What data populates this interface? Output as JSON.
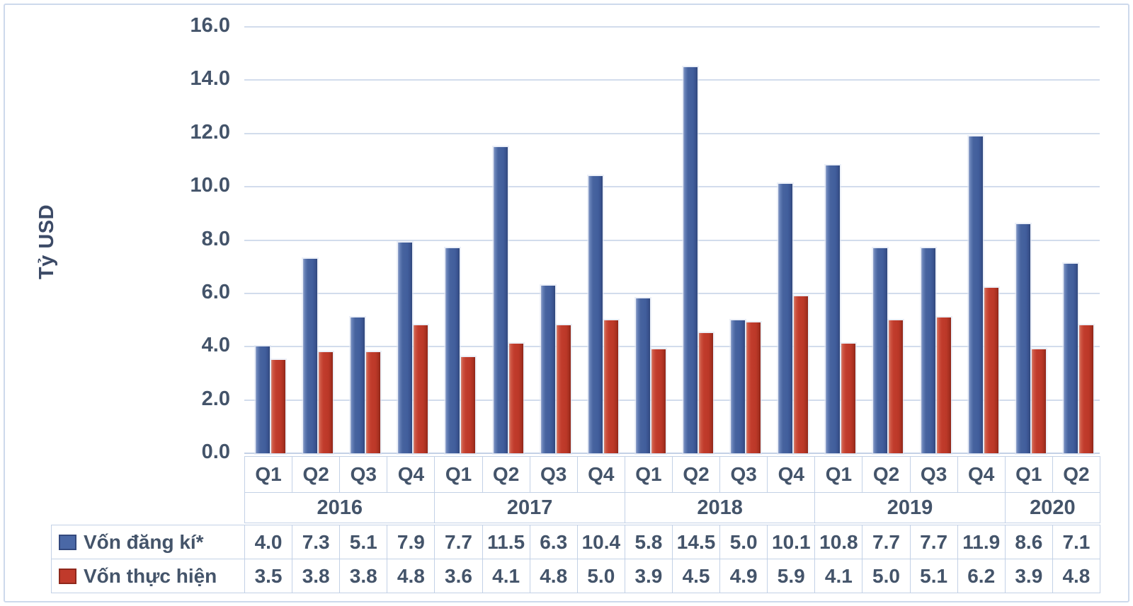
{
  "chart_data": {
    "type": "bar",
    "title": "",
    "ylabel": "Tỷ USD",
    "xlabel": "",
    "ylim": [
      0,
      16
    ],
    "ytick_step": 2,
    "ytick_labels": [
      "16.0",
      "14.0",
      "12.0",
      "10.0",
      "8.0",
      "6.0",
      "4.0",
      "2.0",
      "0.0"
    ],
    "grid": true,
    "legend_position": "data-table-left",
    "quarter_labels": [
      "Q1",
      "Q2",
      "Q3",
      "Q4",
      "Q1",
      "Q2",
      "Q3",
      "Q4",
      "Q1",
      "Q2",
      "Q3",
      "Q4",
      "Q1",
      "Q2",
      "Q3",
      "Q4",
      "Q1",
      "Q2"
    ],
    "year_groups": [
      {
        "label": "2016",
        "span": 4
      },
      {
        "label": "2017",
        "span": 4
      },
      {
        "label": "2018",
        "span": 4
      },
      {
        "label": "2019",
        "span": 4
      },
      {
        "label": "2020",
        "span": 2
      }
    ],
    "series": [
      {
        "name": "Vốn đăng kí*",
        "color": "#47639f",
        "values": [
          4.0,
          7.3,
          5.1,
          7.9,
          7.7,
          11.5,
          6.3,
          10.4,
          5.8,
          14.5,
          5.0,
          10.1,
          10.8,
          7.7,
          7.7,
          11.9,
          8.6,
          7.1
        ],
        "values_display": [
          "4.0",
          "7.3",
          "5.1",
          "7.9",
          "7.7",
          "11.5",
          "6.3",
          "10.4",
          "5.8",
          "14.5",
          "5.0",
          "10.1",
          "10.8",
          "7.7",
          "7.7",
          "11.9",
          "8.6",
          "7.1"
        ]
      },
      {
        "name": "Vốn thực hiện",
        "color": "#c03a2b",
        "values": [
          3.5,
          3.8,
          3.8,
          4.8,
          3.6,
          4.1,
          4.8,
          5.0,
          3.9,
          4.5,
          4.9,
          5.9,
          4.1,
          5.0,
          5.1,
          6.2,
          3.9,
          4.8
        ],
        "values_display": [
          "3.5",
          "3.8",
          "3.8",
          "4.8",
          "3.6",
          "4.1",
          "4.8",
          "5.0",
          "3.9",
          "4.5",
          "4.9",
          "5.9",
          "4.1",
          "5.0",
          "5.1",
          "6.2",
          "3.9",
          "4.8"
        ]
      }
    ]
  },
  "colors": {
    "text": "#44546a",
    "gridline": "#d2dcec",
    "cell_border": "#c3d1e6",
    "frame_border": "#cdd9ec",
    "bar_blue": "#47639f",
    "bar_red": "#c03a2b"
  }
}
